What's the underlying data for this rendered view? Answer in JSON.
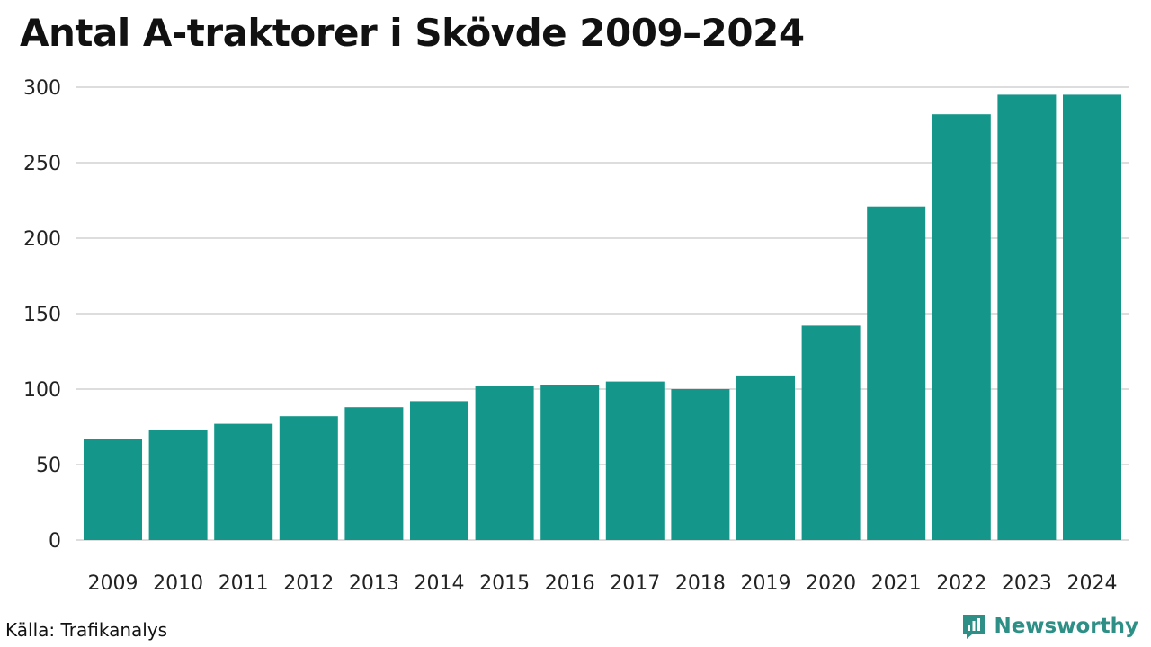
{
  "chart_data": {
    "type": "bar",
    "title": "Antal A-traktorer i Skövde 2009–2024",
    "xlabel": "",
    "ylabel": "",
    "categories": [
      "2009",
      "2010",
      "2011",
      "2012",
      "2013",
      "2014",
      "2015",
      "2016",
      "2017",
      "2018",
      "2019",
      "2020",
      "2021",
      "2022",
      "2023",
      "2024"
    ],
    "values": [
      67,
      73,
      77,
      82,
      88,
      92,
      102,
      103,
      105,
      100,
      109,
      142,
      221,
      282,
      295,
      295
    ],
    "ylim": [
      0,
      300
    ],
    "yticks": [
      0,
      50,
      100,
      150,
      200,
      250,
      300
    ],
    "grid": true,
    "legend": "none",
    "bar_color": "#14978a",
    "grid_color": "#dddddd"
  },
  "footer": {
    "source": "Källa: Trafikanalys",
    "brand": "Newsworthy",
    "brand_icon": "newsworthy-logo-icon",
    "brand_color": "#2e8f86"
  }
}
